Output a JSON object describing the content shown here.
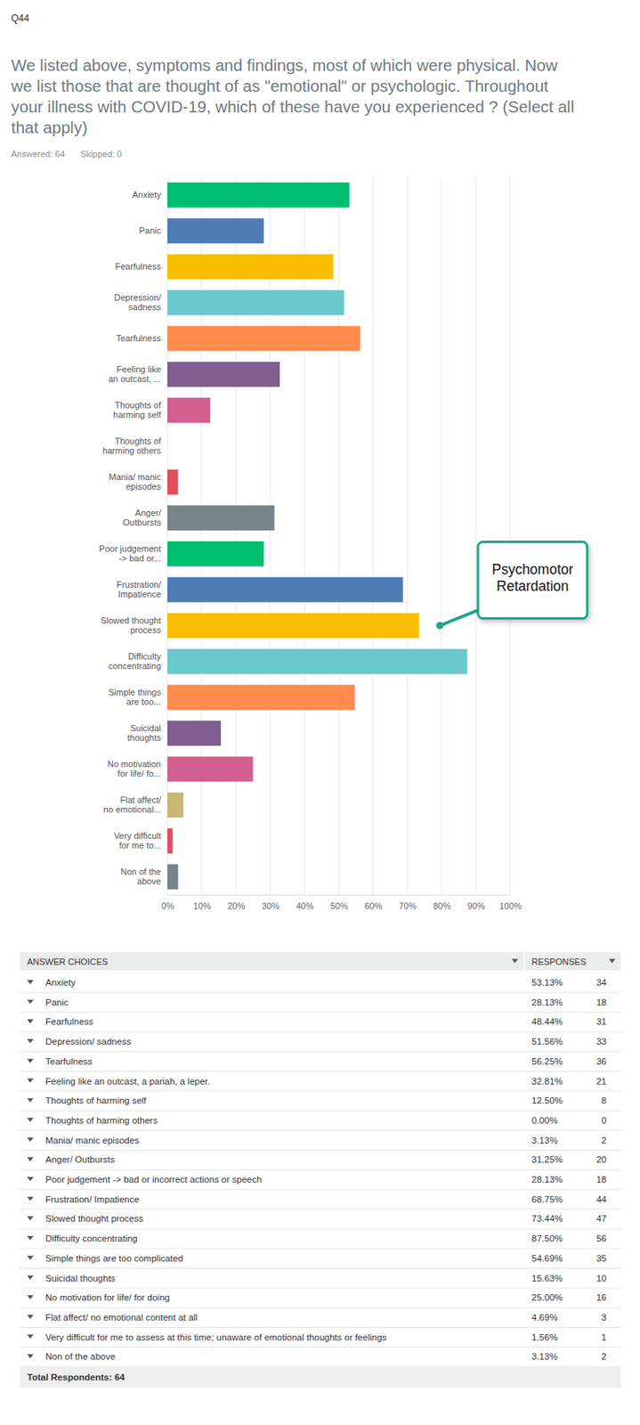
{
  "header": {
    "id": "Q44",
    "question": "We listed above, symptoms and findings, most of which were physical. Now\nwe list those that are thought of as \"emotional\" or psychologic. Throughout\nyour illness with COVID-19, which of these have you experienced ? (Select all\nthat apply)",
    "answered": "Answered: 64",
    "skipped": "Skipped: 0"
  },
  "chart_data": {
    "type": "bar",
    "orientation": "horizontal",
    "categories": [
      "Anxiety",
      "Panic",
      "Fearfulness",
      "Depression/\nsadness",
      "Tearfulness",
      "Feeling like\nan outcast, ...",
      "Thoughts of\nharming self",
      "Thoughts of\nharming others",
      "Mania/ manic\nepisodes",
      "Anger/\nOutbursts",
      "Poor judgement\n-> bad or...",
      "Frustration/\nImpatience",
      "Slowed thought\nprocess",
      "Difficulty\nconcentrating",
      "Simple things\nare too...",
      "Suicidal\nthoughts",
      "No motivation\nfor life/ fo...",
      "Flat affect/\nno emotional...",
      "Very difficult\nfor me to...",
      "Non of the\nabove"
    ],
    "values": [
      53.13,
      28.13,
      48.44,
      51.56,
      56.25,
      32.81,
      12.5,
      0,
      3.13,
      31.25,
      28.13,
      68.75,
      73.44,
      87.5,
      54.69,
      15.63,
      25,
      4.69,
      1.56,
      3.13
    ],
    "colors": [
      "#00bf6f",
      "#507cb6",
      "#f9be00",
      "#6bc8cd",
      "#ff8b4f",
      "#7f5f90",
      "#d25f90",
      "#c9b774",
      "#e2505e",
      "#78848b",
      "#00bf6f",
      "#507cb6",
      "#f9be00",
      "#6bc8cd",
      "#ff8b4f",
      "#7f5f90",
      "#d25f90",
      "#c9b774",
      "#e2505e",
      "#78848b"
    ],
    "xlim": [
      0,
      100
    ],
    "xticks": [
      {
        "value": 0,
        "label": "0%"
      },
      {
        "value": 10,
        "label": "10%"
      },
      {
        "value": 20,
        "label": "20%"
      },
      {
        "value": 30,
        "label": "30%"
      },
      {
        "value": 40,
        "label": "40%"
      },
      {
        "value": 50,
        "label": "50%"
      },
      {
        "value": 60,
        "label": "60%"
      },
      {
        "value": 70,
        "label": "70%"
      },
      {
        "value": 80,
        "label": "80%"
      },
      {
        "value": 90,
        "label": "90%"
      },
      {
        "value": 100,
        "label": "100%"
      }
    ],
    "grid": true,
    "annotations": [
      {
        "text": "Psychomotor\nRetardation",
        "category": "Slowed thought\nprocess"
      }
    ]
  },
  "table": {
    "columns": [
      "ANSWER CHOICES",
      "RESPONSES"
    ],
    "rows": [
      [
        "Anxiety",
        "53.13%",
        34
      ],
      [
        "Panic",
        "28.13%",
        18
      ],
      [
        "Fearfulness",
        "48.44%",
        31
      ],
      [
        "Depression/ sadness",
        "51.56%",
        33
      ],
      [
        "Tearfulness",
        "56.25%",
        36
      ],
      [
        "Feeling like an outcast, a pariah, a leper.",
        "32.81%",
        21
      ],
      [
        "Thoughts of harming self",
        "12.50%",
        8
      ],
      [
        "Thoughts of harming others",
        "0.00%",
        0
      ],
      [
        "Mania/ manic episodes",
        "3.13%",
        2
      ],
      [
        "Anger/ Outbursts",
        "31.25%",
        20
      ],
      [
        "Poor judgement -> bad or incorrect actions or speech",
        "28.13%",
        18
      ],
      [
        "Frustration/ Impatience",
        "68.75%",
        44
      ],
      [
        "Slowed thought process",
        "73.44%",
        47
      ],
      [
        "Difficulty concentrating",
        "87.50%",
        56
      ],
      [
        "Simple things are too complicated",
        "54.69%",
        35
      ],
      [
        "Suicidal thoughts",
        "15.63%",
        10
      ],
      [
        "No motivation for life/ for doing",
        "25.00%",
        16
      ],
      [
        "Flat affect/ no emotional content at all",
        "4.69%",
        3
      ],
      [
        "Very difficult for me to assess at this time; unaware of emotional thoughts or feelings",
        "1.56%",
        1
      ],
      [
        "Non of the above",
        "3.13%",
        2
      ]
    ],
    "total": "Total Respondents: 64"
  }
}
